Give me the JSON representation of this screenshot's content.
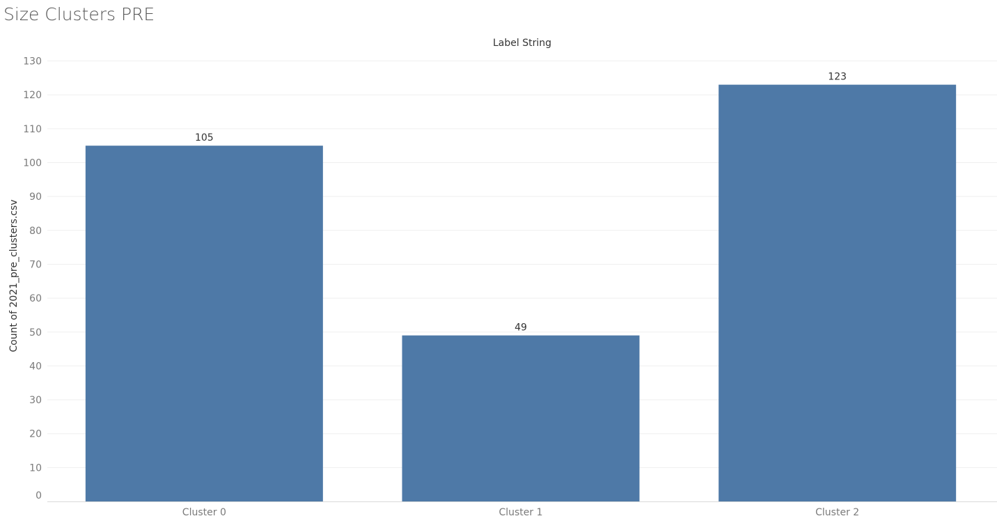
{
  "sheet": {
    "title": "Size Clusters PRE"
  },
  "colors": {
    "bar": "#4E79A7",
    "grid": "#efefef",
    "axis_line": "#d9d9d9",
    "tick_text": "#7a7a7a",
    "label_text": "#333333",
    "title_text": "#555555"
  },
  "chart_data": {
    "type": "bar",
    "title": "Label String",
    "xlabel": "",
    "ylabel": "Count of 2021_pre_clusters.csv",
    "categories": [
      "Cluster 0",
      "Cluster 1",
      "Cluster 2"
    ],
    "values": [
      105,
      49,
      123
    ],
    "data_labels": [
      "105",
      "49",
      "123"
    ],
    "ylim": [
      0,
      130
    ],
    "yticks": [
      0,
      10,
      20,
      30,
      40,
      50,
      60,
      70,
      80,
      90,
      100,
      110,
      120,
      130
    ],
    "grid": true,
    "legend": "none"
  }
}
